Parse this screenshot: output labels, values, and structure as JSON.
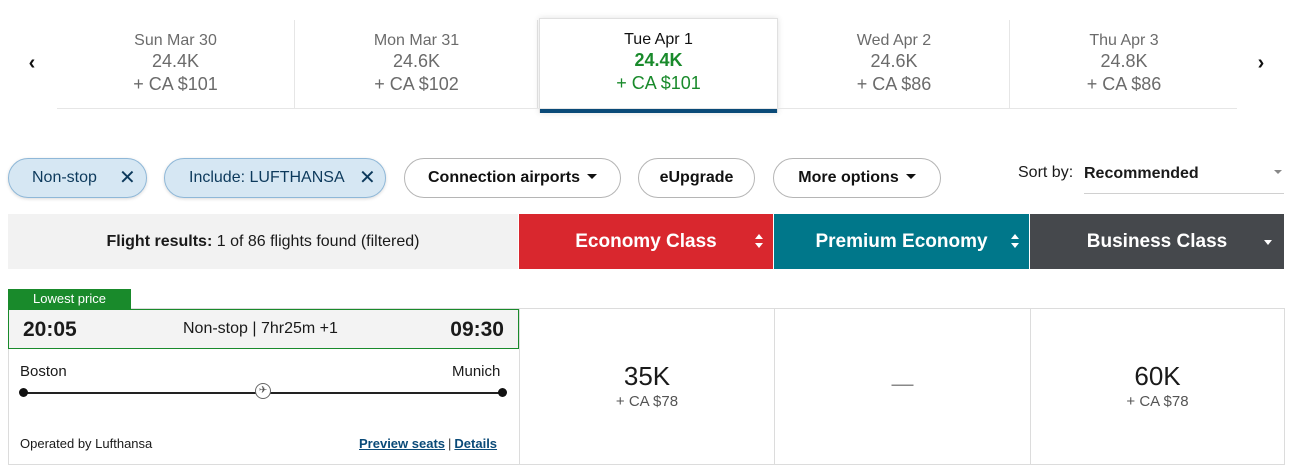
{
  "dates": {
    "prev_arrow": "‹",
    "next_arrow": "›",
    "items": [
      {
        "label": "Sun Mar 30",
        "miles": "24.4K",
        "cash": "+ CA $101",
        "selected": false
      },
      {
        "label": "Mon Mar 31",
        "miles": "24.6K",
        "cash": "+ CA $102",
        "selected": false
      },
      {
        "label": "Tue Apr 1",
        "miles": "24.4K",
        "cash": "+ CA $101",
        "selected": true
      },
      {
        "label": "Wed Apr 2",
        "miles": "24.6K",
        "cash": "+ CA $86",
        "selected": false
      },
      {
        "label": "Thu Apr 3",
        "miles": "24.8K",
        "cash": "+ CA $86",
        "selected": false
      }
    ]
  },
  "filters": {
    "active": [
      {
        "label": "Non-stop",
        "remove_icon": "close-icon"
      },
      {
        "label": "Include: LUFTHANSA",
        "remove_icon": "close-icon"
      }
    ],
    "connection_airports": "Connection airports",
    "eupgrade": "eUpgrade",
    "more_options": "More options"
  },
  "sort": {
    "label": "Sort by:",
    "value": "Recommended"
  },
  "results": {
    "prefix": "Flight results:",
    "summary": "1 of 86 flights found (filtered)"
  },
  "cabins": {
    "economy": "Economy Class",
    "premium": "Premium Economy",
    "business": "Business Class"
  },
  "colors": {
    "economy": "#d9272e",
    "premium": "#00778a",
    "business": "#45484c",
    "lowest_price": "#198a2b",
    "link": "#0a4a78"
  },
  "flight": {
    "badge": "Lowest price",
    "departure_time": "20:05",
    "duration": "Non-stop | 7hr25m +1",
    "arrival_time": "09:30",
    "origin": "Boston",
    "destination": "Munich",
    "operated_by": "Operated by Lufthansa",
    "preview_seats": "Preview seats",
    "separator": "|",
    "details": "Details",
    "fares": {
      "economy": {
        "miles": "35K",
        "cash": "+ CA $78"
      },
      "premium": {
        "none": "—"
      },
      "business": {
        "miles": "60K",
        "cash": "+ CA $78"
      }
    }
  }
}
